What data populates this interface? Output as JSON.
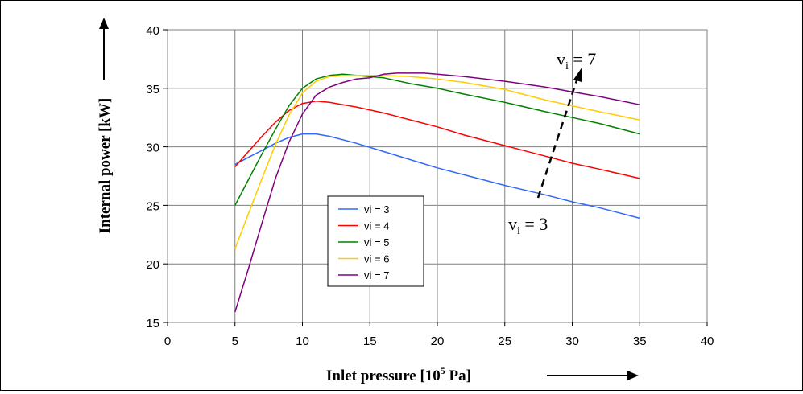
{
  "chart_data": {
    "type": "line",
    "xlabel_main": "Inlet pressure [10",
    "xlabel_sup": "5",
    "xlabel_tail": " Pa]",
    "ylabel": "Internal power [kW]",
    "xlim": [
      0,
      40
    ],
    "ylim": [
      15,
      40
    ],
    "xticks": [
      "0",
      "5",
      "10",
      "15",
      "20",
      "25",
      "30",
      "35",
      "40"
    ],
    "yticks": [
      "15",
      "20",
      "25",
      "30",
      "35",
      "40"
    ],
    "grid": true,
    "legend_position": "center-left inside plot",
    "series": [
      {
        "name": "vi = 3",
        "color": "#3366ff",
        "x": [
          5,
          6,
          7,
          8,
          9,
          10,
          11,
          12,
          14,
          16,
          18,
          20,
          22,
          25,
          28,
          30,
          32,
          35
        ],
        "y": [
          28.5,
          29.1,
          29.7,
          30.3,
          30.8,
          31.1,
          31.1,
          30.9,
          30.3,
          29.6,
          28.9,
          28.2,
          27.6,
          26.7,
          25.9,
          25.3,
          24.8,
          23.9
        ]
      },
      {
        "name": "vi = 4",
        "color": "#ff0000",
        "x": [
          5,
          6,
          7,
          8,
          9,
          10,
          11,
          12,
          14,
          16,
          18,
          20,
          22,
          25,
          28,
          30,
          32,
          35
        ],
        "y": [
          28.3,
          29.6,
          30.9,
          32.1,
          33.1,
          33.7,
          33.9,
          33.8,
          33.4,
          32.9,
          32.3,
          31.7,
          31.0,
          30.1,
          29.2,
          28.6,
          28.1,
          27.3
        ]
      },
      {
        "name": "vi = 5",
        "color": "#008000",
        "x": [
          5,
          6,
          7,
          8,
          9,
          10,
          11,
          12,
          13,
          14,
          16,
          18,
          20,
          22,
          25,
          28,
          30,
          32,
          35
        ],
        "y": [
          25.0,
          27.2,
          29.4,
          31.5,
          33.5,
          35.0,
          35.8,
          36.1,
          36.2,
          36.1,
          35.9,
          35.4,
          35.0,
          34.5,
          33.8,
          33.0,
          32.5,
          32.0,
          31.1
        ]
      },
      {
        "name": "vi = 6",
        "color": "#ffcc00",
        "x": [
          5,
          6,
          7,
          8,
          9,
          10,
          11,
          12,
          13,
          14,
          16,
          18,
          20,
          22,
          25,
          28,
          30,
          32,
          35
        ],
        "y": [
          21.3,
          24.3,
          27.3,
          30.2,
          32.7,
          34.6,
          35.6,
          36.0,
          36.1,
          36.1,
          36.1,
          36.0,
          35.8,
          35.5,
          34.9,
          34.0,
          33.5,
          33.0,
          32.3
        ]
      },
      {
        "name": "vi = 7",
        "color": "#800080",
        "x": [
          5,
          6,
          7,
          8,
          9,
          10,
          11,
          12,
          13,
          14,
          15,
          16,
          17,
          18,
          19,
          20,
          22,
          25,
          28,
          30,
          32,
          35
        ],
        "y": [
          15.9,
          19.6,
          23.5,
          27.3,
          30.4,
          32.8,
          34.4,
          35.1,
          35.5,
          35.8,
          35.9,
          36.2,
          36.3,
          36.3,
          36.3,
          36.2,
          36.0,
          35.6,
          35.1,
          34.7,
          34.3,
          33.6
        ]
      }
    ],
    "annotations": {
      "top_label_main": "v",
      "top_label_sub": "i",
      "top_label_tail": " = 7",
      "bottom_label_main": "v",
      "bottom_label_sub": "i",
      "bottom_label_tail": " = 3"
    }
  }
}
